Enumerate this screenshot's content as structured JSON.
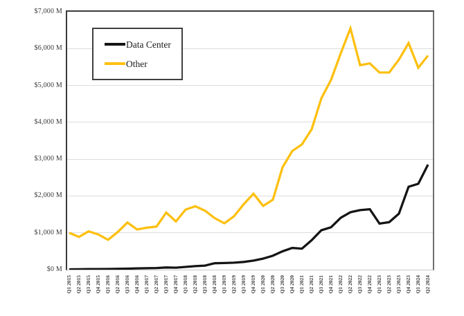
{
  "page": {
    "background": "#ffffff"
  },
  "chart_data": {
    "type": "line",
    "title": "",
    "xlabel": "",
    "ylabel": "",
    "ylim": [
      0,
      7000
    ],
    "y_tick_interval": 1000,
    "y_tick_labels_top_to_bottom": [
      "$7,000 M",
      "$6,000 M",
      "$5,000 M",
      "$4,000 M",
      "$3,000 M",
      "$2,000 M",
      "$1,000 M",
      "$0 M"
    ],
    "grid": "horizontal",
    "legend_position": "inside-top-left",
    "categories": [
      "Q1 2015",
      "Q2 2015",
      "Q3 2015",
      "Q4 2015",
      "Q1 2016",
      "Q2 2016",
      "Q3 2016",
      "Q4 2016",
      "Q1 2017",
      "Q2 2017",
      "Q3 2017",
      "Q4 2017",
      "Q1 2018",
      "Q2 2018",
      "Q3 2018",
      "Q4 2018",
      "Q1 2019",
      "Q2 2019",
      "Q3 2019",
      "Q4 2019",
      "Q1 2020",
      "Q2 2020",
      "Q3 2020",
      "Q4 2020",
      "Q1 2021",
      "Q2 2021",
      "Q3 2021",
      "Q4 2021",
      "Q1 2022",
      "Q2 2022",
      "Q3 2022",
      "Q4 2022",
      "Q1 2023",
      "Q2 2023",
      "Q3 2023",
      "Q4 2023",
      "Q1 2024",
      "Q2 2024"
    ],
    "series": [
      {
        "name": "Data Center",
        "color": "#141414",
        "values": [
          10,
          12,
          15,
          15,
          18,
          22,
          28,
          35,
          40,
          45,
          60,
          55,
          75,
          95,
          110,
          175,
          180,
          190,
          210,
          245,
          300,
          380,
          500,
          590,
          570,
          800,
          1070,
          1150,
          1410,
          1560,
          1615,
          1640,
          1250,
          1290,
          1520,
          2250,
          2330,
          2850
        ]
      },
      {
        "name": "Other",
        "color": "#FDC010",
        "values": [
          1000,
          890,
          1040,
          955,
          810,
          1020,
          1280,
          1090,
          1140,
          1170,
          1550,
          1310,
          1630,
          1720,
          1600,
          1400,
          1260,
          1450,
          1780,
          2060,
          1730,
          1900,
          2780,
          3220,
          3400,
          3810,
          4650,
          5150,
          5870,
          6550,
          5550,
          5600,
          5350,
          5350,
          5700,
          6150,
          5480,
          5810
        ]
      }
    ]
  },
  "colors": {
    "gridline": "#dddddd",
    "axis_left_top": "#3a3a3a",
    "axis_right": "#6e6e6e",
    "axis_bottom": "#c8c8c8",
    "tick_text": "#3d3d3d"
  }
}
